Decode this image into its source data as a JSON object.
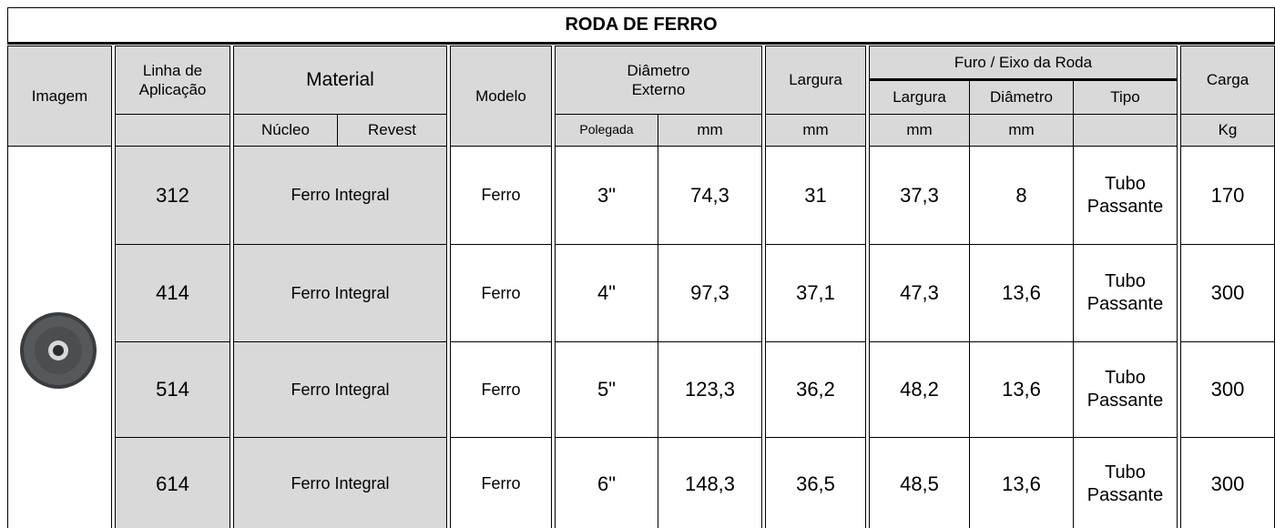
{
  "title": "RODA DE FERRO",
  "header": {
    "imagem": "Imagem",
    "linha": "Linha de Aplicação",
    "material": "Material",
    "nucleo": "Núcleo",
    "revest": "Revest",
    "modelo": "Modelo",
    "diametro_externo": "Diâmetro Externo",
    "polegada": "Polegada",
    "polegada_mm": "mm",
    "largura": "Largura",
    "largura_mm": "mm",
    "furo": "Furo / Eixo da Roda",
    "furo_largura": "Largura",
    "furo_largura_mm": "mm",
    "furo_diametro": "Diâmetro",
    "furo_diametro_mm": "mm",
    "tipo": "Tipo",
    "carga": "Carga",
    "carga_unit": "Kg"
  },
  "rows": [
    {
      "linha": "312",
      "material": "Ferro Integral",
      "modelo": "Ferro",
      "polegada": "3\"",
      "mm": "74,3",
      "largura": "31",
      "furo_largura": "37,3",
      "furo_diametro": "8",
      "tipo": "Tubo Passante",
      "carga": "170"
    },
    {
      "linha": "414",
      "material": "Ferro Integral",
      "modelo": "Ferro",
      "polegada": "4\"",
      "mm": "97,3",
      "largura": "37,1",
      "furo_largura": "47,3",
      "furo_diametro": "13,6",
      "tipo": "Tubo Passante",
      "carga": "300"
    },
    {
      "linha": "514",
      "material": "Ferro Integral",
      "modelo": "Ferro",
      "polegada": "5\"",
      "mm": "123,3",
      "largura": "36,2",
      "furo_largura": "48,2",
      "furo_diametro": "13,6",
      "tipo": "Tubo Passante",
      "carga": "300"
    },
    {
      "linha": "614",
      "material": "Ferro Integral",
      "modelo": "Ferro",
      "polegada": "6\"",
      "mm": "148,3",
      "largura": "36,5",
      "furo_largura": "48,5",
      "furo_diametro": "13,6",
      "tipo": "Tubo Passante",
      "carga": "300"
    }
  ]
}
